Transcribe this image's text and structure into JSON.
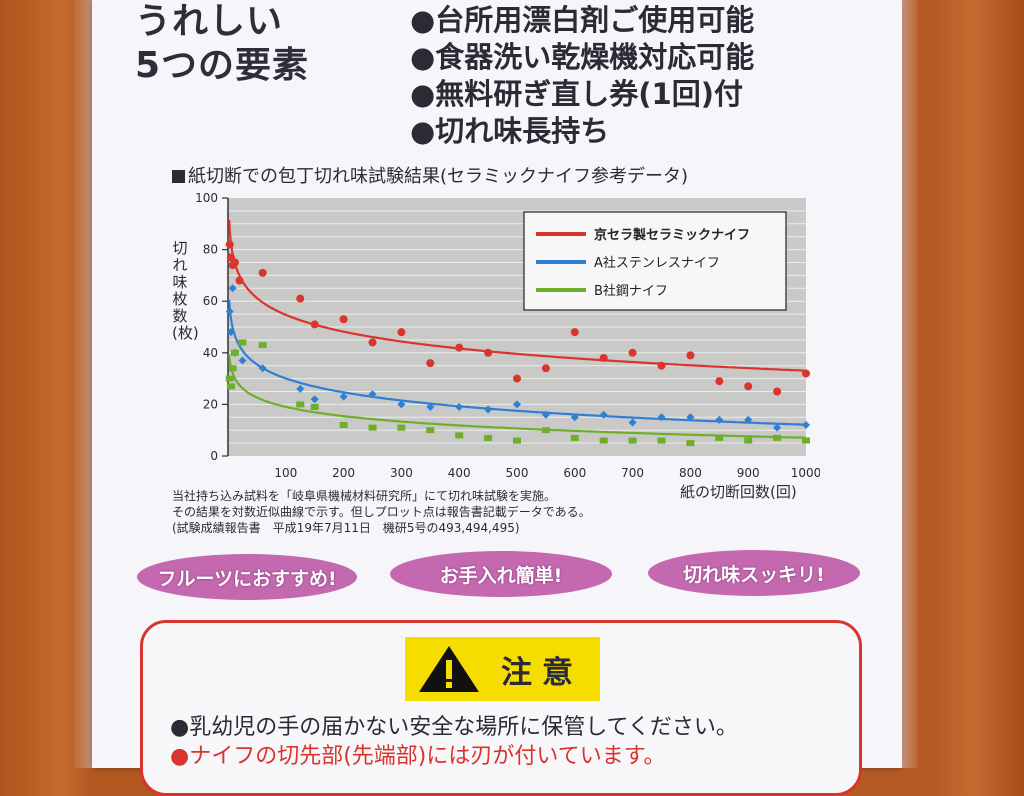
{
  "headline": {
    "line1": "うれしい",
    "line2": "5つの要素"
  },
  "features": [
    "●台所用漂白剤ご使用可能",
    "●食器洗い乾燥機対応可能",
    "●無料研ぎ直し券(1回)付",
    "●切れ味長持ち"
  ],
  "chart_heading": "紙切断での包丁切れ味試験結果(セラミックナイフ参考データ)",
  "footnotes": [
    "当社持ち込み試料を「岐阜県機械材料研究所」にて切れ味試験を実施。",
    "その結果を対数近似曲線で示す。但しプロット点は報告書記載データである。",
    "(試験成績報告書　平成19年7月11日　機研5号の493,494,495)"
  ],
  "pills": [
    "フルーツにおすすめ!",
    "お手入れ簡単!",
    "切れ味スッキリ!"
  ],
  "caution": {
    "title": "注意",
    "line1": "乳幼児の手の届かない安全な場所に保管してください。",
    "line2": "ナイフの切先部(先端部)には刃が付いています。"
  },
  "colors": {
    "series1": "#d9342e",
    "series2": "#2f7fd4",
    "series3": "#6fae2a",
    "pill": "#c469b0",
    "caution_badge": "#f5dd00",
    "caution_border": "#d9342e"
  },
  "chart_data": {
    "type": "scatter",
    "title": "",
    "xlabel": "紙の切断回数(回)",
    "ylabel": "切れ味枚数(枚)",
    "xlim": [
      0,
      1000
    ],
    "ylim": [
      0,
      100
    ],
    "xticks": [
      100,
      200,
      300,
      400,
      500,
      600,
      700,
      800,
      900,
      1000
    ],
    "yticks": [
      0,
      20,
      40,
      60,
      80,
      100
    ],
    "grid": true,
    "legend_position": "top-right",
    "trendline": "logarithmic",
    "series": [
      {
        "name": "京セラ製セラミックナイフ",
        "color": "#d9342e",
        "marker": "circle",
        "points": [
          [
            3,
            82
          ],
          [
            5,
            77
          ],
          [
            8,
            74
          ],
          [
            12,
            75
          ],
          [
            20,
            68
          ],
          [
            60,
            71
          ],
          [
            125,
            61
          ],
          [
            150,
            51
          ],
          [
            200,
            53
          ],
          [
            250,
            44
          ],
          [
            300,
            48
          ],
          [
            350,
            36
          ],
          [
            400,
            42
          ],
          [
            450,
            40
          ],
          [
            500,
            30
          ],
          [
            550,
            34
          ],
          [
            600,
            48
          ],
          [
            650,
            38
          ],
          [
            700,
            40
          ],
          [
            750,
            35
          ],
          [
            800,
            39
          ],
          [
            850,
            29
          ],
          [
            900,
            27
          ],
          [
            950,
            25
          ],
          [
            1000,
            32
          ]
        ],
        "fit": {
          "a": 98,
          "b": -9.4
        }
      },
      {
        "name": "A社ステンレスナイフ",
        "color": "#2f7fd4",
        "marker": "diamond",
        "points": [
          [
            3,
            56
          ],
          [
            5,
            48
          ],
          [
            8,
            65
          ],
          [
            12,
            40
          ],
          [
            25,
            37
          ],
          [
            60,
            34
          ],
          [
            125,
            26
          ],
          [
            150,
            22
          ],
          [
            200,
            23
          ],
          [
            250,
            24
          ],
          [
            300,
            20
          ],
          [
            350,
            19
          ],
          [
            400,
            19
          ],
          [
            450,
            18
          ],
          [
            500,
            20
          ],
          [
            550,
            16
          ],
          [
            600,
            15
          ],
          [
            650,
            16
          ],
          [
            700,
            13
          ],
          [
            750,
            15
          ],
          [
            800,
            15
          ],
          [
            850,
            14
          ],
          [
            900,
            14
          ],
          [
            950,
            11
          ],
          [
            1000,
            12
          ]
        ],
        "fit": {
          "a": 66,
          "b": -7.8
        }
      },
      {
        "name": "B社鋼ナイフ",
        "color": "#6fae2a",
        "marker": "square",
        "points": [
          [
            3,
            30
          ],
          [
            5,
            27
          ],
          [
            8,
            34
          ],
          [
            12,
            40
          ],
          [
            25,
            44
          ],
          [
            60,
            43
          ],
          [
            125,
            20
          ],
          [
            150,
            19
          ],
          [
            200,
            12
          ],
          [
            250,
            11
          ],
          [
            300,
            11
          ],
          [
            350,
            10
          ],
          [
            400,
            8
          ],
          [
            450,
            7
          ],
          [
            500,
            6
          ],
          [
            550,
            10
          ],
          [
            600,
            7
          ],
          [
            650,
            6
          ],
          [
            700,
            6
          ],
          [
            750,
            6
          ],
          [
            800,
            5
          ],
          [
            850,
            7
          ],
          [
            900,
            6
          ],
          [
            950,
            7
          ],
          [
            1000,
            6
          ]
        ],
        "fit": {
          "a": 43,
          "b": -5.2
        }
      }
    ]
  }
}
